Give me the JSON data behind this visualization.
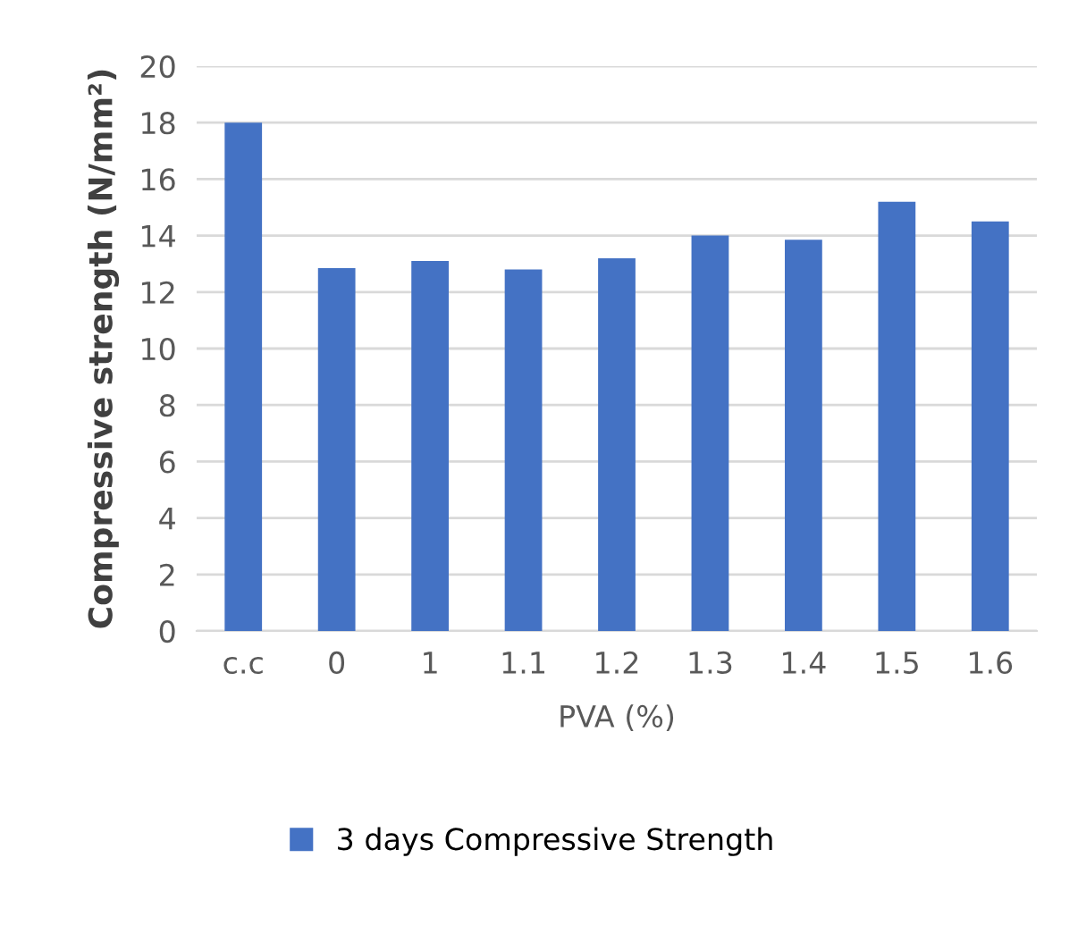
{
  "chart_data": {
    "type": "bar",
    "categories": [
      "c.c",
      "0",
      "1",
      "1.1",
      "1.2",
      "1.3",
      "1.4",
      "1.5",
      "1.6"
    ],
    "series": [
      {
        "name": "3 days Compressive Strength",
        "color": "#4472c4",
        "values": [
          18.0,
          12.85,
          13.1,
          12.8,
          13.2,
          14.0,
          13.85,
          15.2,
          14.5
        ]
      }
    ],
    "xlabel": "PVA (%)",
    "ylabel": "Compressive strength (N/mm²)",
    "ylim": [
      0,
      20
    ],
    "yticks": [
      0,
      2,
      4,
      6,
      8,
      10,
      12,
      14,
      16,
      18,
      20
    ],
    "grid": "y",
    "legend": "bottom"
  }
}
